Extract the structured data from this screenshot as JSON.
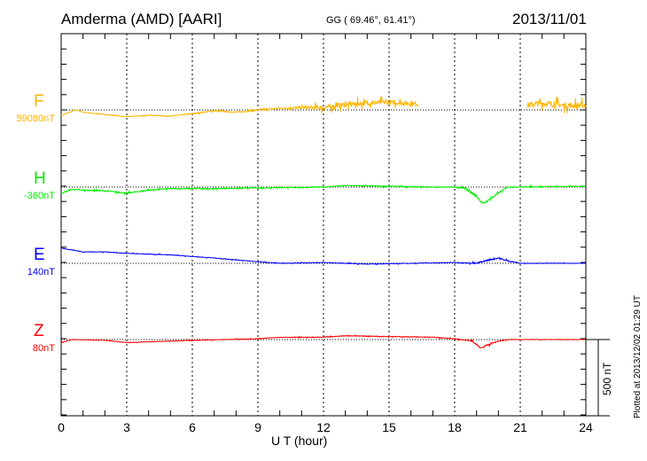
{
  "header": {
    "station": "Amderma (AMD)  [AARI]",
    "coords": "GG ( 69.46°,  61.41°)",
    "date": "2013/11/01"
  },
  "footer": {
    "plotted": "Plotted at 2013/12/02 01:29 UT"
  },
  "chart_data": {
    "type": "line",
    "xlabel": "U T (hour)",
    "xlim": [
      0,
      24
    ],
    "xticks": [
      "0",
      "3",
      "6",
      "9",
      "12",
      "15",
      "18",
      "21",
      "24"
    ],
    "scale_bar": "500 nT",
    "grid": true,
    "series": [
      {
        "name": "F",
        "baseline": "59080nT",
        "color": "#ffb400",
        "points": [
          [
            0,
            -35
          ],
          [
            0.7,
            0
          ],
          [
            1,
            -15
          ],
          [
            2,
            -30
          ],
          [
            3,
            -45
          ],
          [
            4,
            -35
          ],
          [
            5,
            -40
          ],
          [
            6,
            -25
          ],
          [
            7,
            -5
          ],
          [
            8,
            -15
          ],
          [
            9,
            0
          ],
          [
            10,
            10
          ],
          [
            11,
            15
          ],
          [
            12,
            15
          ],
          [
            13,
            35
          ],
          [
            14,
            45
          ],
          [
            15,
            50
          ],
          [
            16.3,
            40
          ],
          [
            21.3,
            30
          ],
          [
            22,
            45
          ],
          [
            23,
            30
          ],
          [
            24,
            30
          ]
        ],
        "gaps": [
          [
            16.35,
            21.3
          ]
        ],
        "noise": [
          [
            0,
            4
          ],
          [
            6,
            8
          ],
          [
            8,
            12
          ],
          [
            11,
            25
          ],
          [
            12,
            45
          ],
          [
            16.3,
            45
          ],
          [
            21.3,
            55
          ],
          [
            24,
            55
          ]
        ]
      },
      {
        "name": "H",
        "baseline": "-360nT",
        "color": "#00ee00",
        "points": [
          [
            0,
            -40
          ],
          [
            0.5,
            -15
          ],
          [
            1,
            -20
          ],
          [
            2,
            -25
          ],
          [
            3,
            -40
          ],
          [
            4,
            -20
          ],
          [
            5,
            -10
          ],
          [
            7,
            -10
          ],
          [
            9,
            -5
          ],
          [
            12,
            0
          ],
          [
            13,
            10
          ],
          [
            15,
            5
          ],
          [
            17,
            0
          ],
          [
            18,
            0
          ],
          [
            18.5,
            -10
          ],
          [
            19,
            -60
          ],
          [
            19.3,
            -110
          ],
          [
            19.6,
            -80
          ],
          [
            20,
            -40
          ],
          [
            20.4,
            0
          ],
          [
            24,
            5
          ]
        ],
        "gaps": [],
        "noise": [
          [
            0,
            10
          ],
          [
            18,
            8
          ],
          [
            18.5,
            25
          ],
          [
            20.5,
            8
          ],
          [
            24,
            6
          ]
        ]
      },
      {
        "name": "E",
        "baseline": "140nT",
        "color": "#0000ff",
        "points": [
          [
            0,
            100
          ],
          [
            1,
            75
          ],
          [
            2,
            75
          ],
          [
            3,
            65
          ],
          [
            5,
            55
          ],
          [
            7,
            35
          ],
          [
            9,
            10
          ],
          [
            10,
            0
          ],
          [
            12,
            5
          ],
          [
            14,
            -5
          ],
          [
            16,
            0
          ],
          [
            18,
            5
          ],
          [
            19,
            0
          ],
          [
            19.5,
            20
          ],
          [
            20,
            35
          ],
          [
            20.3,
            20
          ],
          [
            21,
            0
          ],
          [
            24,
            0
          ]
        ],
        "gaps": [],
        "noise": [
          [
            0,
            5
          ],
          [
            18.5,
            5
          ],
          [
            19,
            15
          ],
          [
            20.3,
            15
          ],
          [
            21,
            4
          ],
          [
            24,
            4
          ]
        ]
      },
      {
        "name": "Z",
        "baseline": "80nT",
        "color": "#ff0000",
        "points": [
          [
            0,
            -20
          ],
          [
            0.5,
            0
          ],
          [
            2,
            -5
          ],
          [
            3,
            -20
          ],
          [
            4,
            -15
          ],
          [
            6,
            -5
          ],
          [
            9,
            5
          ],
          [
            10,
            15
          ],
          [
            12,
            15
          ],
          [
            13,
            25
          ],
          [
            15,
            20
          ],
          [
            17,
            15
          ],
          [
            18,
            5
          ],
          [
            18.8,
            -10
          ],
          [
            19.2,
            -55
          ],
          [
            19.6,
            -30
          ],
          [
            20,
            -10
          ],
          [
            20.5,
            0
          ],
          [
            24,
            0
          ]
        ],
        "gaps": [],
        "noise": [
          [
            0,
            4
          ],
          [
            18.5,
            6
          ],
          [
            19,
            20
          ],
          [
            20,
            8
          ],
          [
            21,
            3
          ],
          [
            24,
            3
          ]
        ]
      }
    ]
  }
}
